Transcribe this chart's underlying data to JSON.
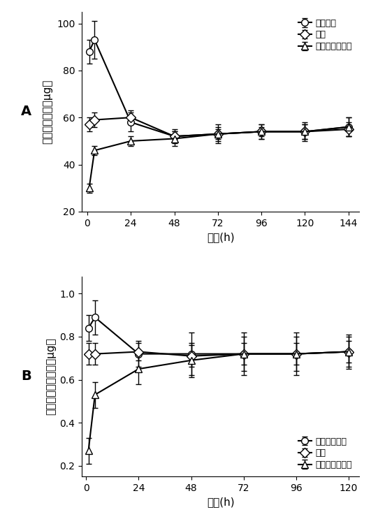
{
  "panel_A": {
    "xlabel": "时间(h)",
    "ylabel": "噻吗洛尔释放（μg）",
    "label": "A",
    "ylim": [
      20,
      105
    ],
    "yticks": [
      20,
      40,
      60,
      80,
      100
    ],
    "xticks": [
      0,
      24,
      48,
      72,
      96,
      120,
      144
    ],
    "xlim": [
      -3,
      150
    ],
    "legend_loc": "upper right",
    "series": [
      {
        "name": "噻吗洛尔",
        "marker": "o",
        "x": [
          1,
          4,
          24,
          48,
          72,
          96,
          120,
          144
        ],
        "y": [
          88,
          93,
          58,
          52,
          53,
          54,
          54,
          56
        ],
        "yerr": [
          5,
          8,
          4,
          3,
          4,
          3,
          4,
          4
        ]
      },
      {
        "name": "胶束",
        "marker": "D",
        "x": [
          1,
          4,
          24,
          48,
          72,
          96,
          120,
          144
        ],
        "y": [
          57,
          59,
          60,
          52,
          53,
          54,
          54,
          55
        ],
        "yerr": [
          3,
          3,
          3,
          2,
          2,
          2,
          3,
          3
        ]
      },
      {
        "name": "载胶束隐形眼镜",
        "marker": "^",
        "x": [
          1,
          4,
          24,
          48,
          72,
          96,
          120,
          144
        ],
        "y": [
          30,
          46,
          50,
          51,
          53,
          54,
          54,
          56
        ],
        "yerr": [
          2,
          2,
          2,
          3,
          3,
          3,
          3,
          4
        ]
      }
    ]
  },
  "panel_B": {
    "xlabel": "时间(h)",
    "ylabel": "拉坦前列腺素释放（μg）",
    "label": "B",
    "ylim": [
      0.15,
      1.08
    ],
    "yticks": [
      0.2,
      0.4,
      0.6,
      0.8,
      1.0
    ],
    "xticks": [
      0,
      24,
      48,
      72,
      96,
      120
    ],
    "xlim": [
      -2,
      125
    ],
    "legend_loc": "lower right",
    "series": [
      {
        "name": "拉坦前列腺素",
        "marker": "o",
        "x": [
          1,
          4,
          24,
          48,
          72,
          96,
          120
        ],
        "y": [
          0.84,
          0.89,
          0.72,
          0.72,
          0.72,
          0.72,
          0.73
        ],
        "yerr": [
          0.06,
          0.08,
          0.06,
          0.1,
          0.1,
          0.1,
          0.08
        ]
      },
      {
        "name": "胶束",
        "marker": "D",
        "x": [
          1,
          4,
          24,
          48,
          72,
          96,
          120
        ],
        "y": [
          0.72,
          0.72,
          0.73,
          0.71,
          0.72,
          0.72,
          0.73
        ],
        "yerr": [
          0.05,
          0.05,
          0.04,
          0.05,
          0.05,
          0.05,
          0.05
        ]
      },
      {
        "name": "载胶束隐形眼镜",
        "marker": "^",
        "x": [
          1,
          4,
          24,
          48,
          72,
          96,
          120
        ],
        "y": [
          0.27,
          0.53,
          0.65,
          0.69,
          0.72,
          0.72,
          0.73
        ],
        "yerr": [
          0.06,
          0.06,
          0.07,
          0.08,
          0.08,
          0.08,
          0.07
        ]
      }
    ]
  },
  "line_color": "#000000",
  "marker_facecolor": "#ffffff",
  "marker_size": 7,
  "linewidth": 1.5,
  "capsize": 3,
  "fontsize_label": 11,
  "fontsize_tick": 10,
  "fontsize_legend": 9,
  "fontsize_panel": 14
}
